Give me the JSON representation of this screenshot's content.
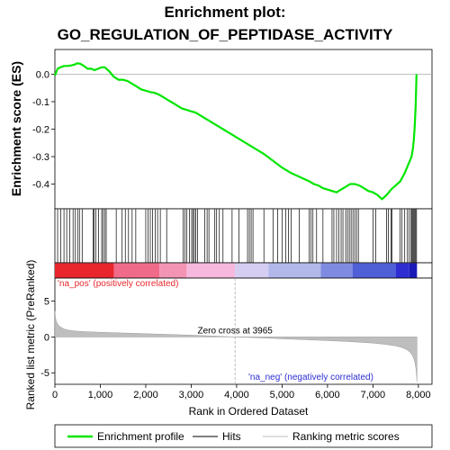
{
  "chart_data": {
    "type": "line",
    "title_line1": "Enrichment plot:",
    "title_line2": "GO_REGULATION_OF_PEPTIDASE_ACTIVITY",
    "xlabel": "Rank in Ordered Dataset",
    "ylabel_top": "Enrichment score (ES)",
    "ylabel_bottom": "Ranked list metric (PreRanked)",
    "xlim": [
      0,
      8300
    ],
    "x_ticks": [
      0,
      1000,
      2000,
      3000,
      4000,
      5000,
      6000,
      7000,
      8000
    ],
    "x_tick_labels": [
      "0",
      "1,000",
      "2,000",
      "3,000",
      "4,000",
      "5,000",
      "6,000",
      "7,000",
      "8,000"
    ],
    "es_ylim": [
      -0.49,
      0.09
    ],
    "es_ticks": [
      0.0,
      -0.1,
      -0.2,
      -0.3,
      -0.4
    ],
    "es_tick_labels": [
      "0.0",
      "-0.1",
      "-0.2",
      "-0.3",
      "-0.4"
    ],
    "metric_ylim": [
      -6.6,
      8.2
    ],
    "metric_ticks": [
      5,
      0,
      -5
    ],
    "metric_tick_labels": [
      "5",
      "0",
      "-5"
    ],
    "zero_cross": 3965,
    "zero_cross_label": "Zero cross at 3965",
    "pos_label": "'na_pos' (positively correlated)",
    "neg_label": "'na_neg' (negatively correlated)",
    "colors": {
      "enrichment": "#00e600",
      "hits": "#000000",
      "metric": "#bebebe",
      "zero_line": "#aaaaaa",
      "pos_text": "#e8282d",
      "neg_text": "#2d2dd2"
    },
    "es_curve": {
      "x": [
        0,
        60,
        120,
        200,
        280,
        360,
        430,
        500,
        560,
        640,
        720,
        800,
        870,
        950,
        1020,
        1100,
        1200,
        1300,
        1400,
        1500,
        1600,
        1700,
        1800,
        1900,
        2000,
        2100,
        2200,
        2300,
        2400,
        2500,
        2600,
        2700,
        2800,
        2900,
        3000,
        3100,
        3200,
        3300,
        3400,
        3500,
        3600,
        3700,
        3800,
        3900,
        4000,
        4200,
        4400,
        4600,
        4800,
        5000,
        5200,
        5400,
        5600,
        5700,
        5800,
        5900,
        6000,
        6100,
        6200,
        6300,
        6400,
        6450,
        6500,
        6600,
        6700,
        6800,
        6900,
        7000,
        7100,
        7200,
        7300,
        7400,
        7500,
        7600,
        7700,
        7750,
        7800,
        7850,
        7880,
        7900,
        7920,
        7940,
        7960
      ],
      "y": [
        -0.005,
        0.02,
        0.025,
        0.03,
        0.03,
        0.032,
        0.035,
        0.04,
        0.038,
        0.03,
        0.02,
        0.02,
        0.015,
        0.02,
        0.025,
        0.025,
        0.01,
        -0.01,
        -0.02,
        -0.02,
        -0.025,
        -0.035,
        -0.045,
        -0.055,
        -0.06,
        -0.065,
        -0.068,
        -0.075,
        -0.085,
        -0.095,
        -0.105,
        -0.115,
        -0.125,
        -0.13,
        -0.135,
        -0.14,
        -0.15,
        -0.16,
        -0.17,
        -0.18,
        -0.19,
        -0.2,
        -0.21,
        -0.22,
        -0.23,
        -0.25,
        -0.27,
        -0.29,
        -0.315,
        -0.34,
        -0.36,
        -0.375,
        -0.39,
        -0.4,
        -0.405,
        -0.415,
        -0.42,
        -0.425,
        -0.43,
        -0.42,
        -0.41,
        -0.405,
        -0.4,
        -0.4,
        -0.405,
        -0.415,
        -0.425,
        -0.43,
        -0.44,
        -0.455,
        -0.44,
        -0.42,
        -0.405,
        -0.39,
        -0.36,
        -0.34,
        -0.32,
        -0.3,
        -0.27,
        -0.24,
        -0.19,
        -0.12,
        0.0
      ]
    },
    "hits_x": [
      60,
      130,
      200,
      260,
      330,
      400,
      450,
      500,
      540,
      600,
      840,
      860,
      900,
      960,
      1030,
      1060,
      1100,
      1130,
      1350,
      1480,
      1550,
      1620,
      1700,
      1780,
      2000,
      2050,
      2100,
      2150,
      2210,
      2260,
      2320,
      2460,
      2820,
      2860,
      2900,
      2960,
      3010,
      3040,
      3070,
      3100,
      3140,
      3300,
      3350,
      3390,
      3520,
      3560,
      3620,
      3700,
      3900,
      4050,
      4240,
      4280,
      4320,
      4360,
      4600,
      4800,
      4900,
      5000,
      5080,
      5140,
      5200,
      5380,
      5600,
      5640,
      5680,
      5760,
      5900,
      6100,
      6140,
      6200,
      6250,
      6300,
      6340,
      6400,
      6440,
      6480,
      6520,
      6560,
      6600,
      6640,
      6680,
      7000,
      7060,
      7300,
      7340,
      7400,
      7420,
      7600,
      7640,
      7700,
      7760,
      7800,
      7840,
      7860,
      7880,
      7900,
      7920,
      7940,
      7960
    ],
    "metric": {
      "x": [
        0,
        10,
        30,
        60,
        100,
        150,
        200,
        300,
        400,
        600,
        800,
        1000,
        1500,
        2000,
        2500,
        3000,
        3500,
        3965,
        4500,
        5000,
        5500,
        6000,
        6500,
        7000,
        7300,
        7500,
        7650,
        7750,
        7830,
        7880,
        7920,
        7950,
        7970
      ],
      "y": [
        3.6,
        2.8,
        2.2,
        1.8,
        1.5,
        1.3,
        1.1,
        0.95,
        0.85,
        0.75,
        0.7,
        0.65,
        0.55,
        0.45,
        0.35,
        0.25,
        0.12,
        0.0,
        -0.12,
        -0.25,
        -0.38,
        -0.5,
        -0.65,
        -0.85,
        -1.05,
        -1.25,
        -1.5,
        -1.8,
        -2.2,
        -2.7,
        -3.4,
        -4.5,
        -6.2
      ]
    },
    "colorbar_segments": [
      {
        "from": 0,
        "to": 1300,
        "color": "#e8262c"
      },
      {
        "from": 1300,
        "to": 2300,
        "color": "#f06a8a"
      },
      {
        "from": 2300,
        "to": 2900,
        "color": "#f394b4"
      },
      {
        "from": 2900,
        "to": 3965,
        "color": "#f6b8dc"
      },
      {
        "from": 3965,
        "to": 4700,
        "color": "#d6cdf2"
      },
      {
        "from": 4700,
        "to": 5850,
        "color": "#b2b8ea"
      },
      {
        "from": 5850,
        "to": 6550,
        "color": "#7f8be0"
      },
      {
        "from": 6550,
        "to": 7500,
        "color": "#4f5fd6"
      },
      {
        "from": 7500,
        "to": 7800,
        "color": "#2d2dd2"
      },
      {
        "from": 7800,
        "to": 7970,
        "color": "#1a1ab8"
      }
    ],
    "legend": [
      {
        "label": "Enrichment profile",
        "color": "#00e600"
      },
      {
        "label": "Hits",
        "color": "#808080"
      },
      {
        "label": "Ranking metric scores",
        "color": "#d3d3d3"
      }
    ]
  }
}
